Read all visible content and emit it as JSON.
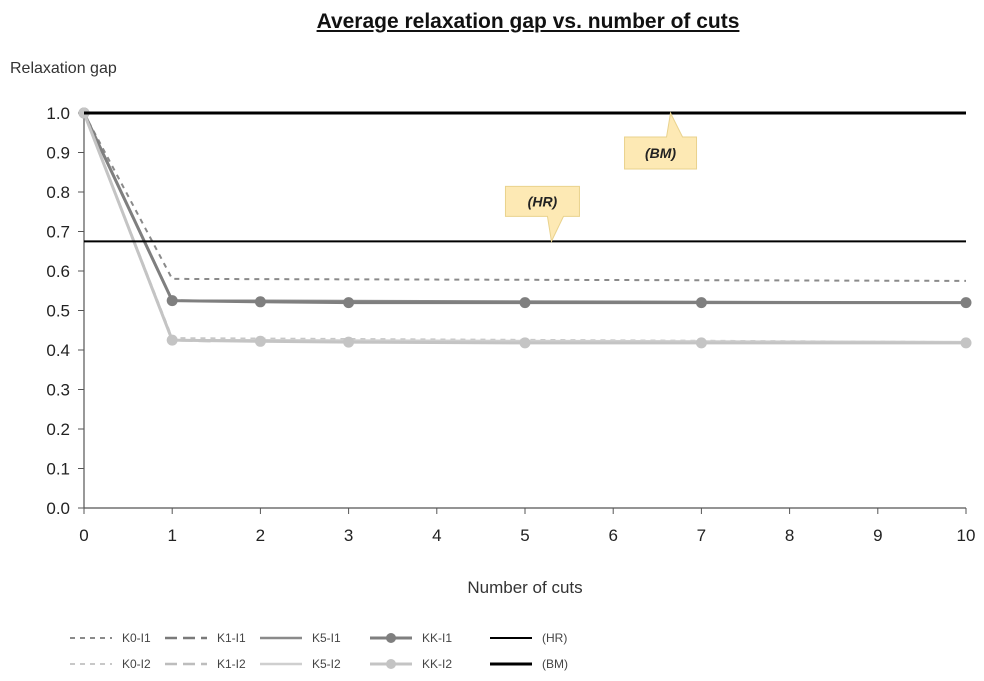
{
  "chart_data": {
    "type": "line",
    "title": "Average relaxation gap vs. number of cuts",
    "xlabel": "Number of cuts",
    "ylabel": "Relaxation gap",
    "xlim": [
      0,
      10
    ],
    "ylim": [
      0,
      1.0
    ],
    "x_ticks": [
      "0",
      "1",
      "2",
      "3",
      "4",
      "5",
      "6",
      "7",
      "8",
      "9",
      "10"
    ],
    "y_ticks": [
      "0.0",
      "0.1",
      "0.2",
      "0.3",
      "0.4",
      "0.5",
      "0.6",
      "0.7",
      "0.8",
      "0.9",
      "1.0"
    ],
    "grid": false,
    "legend_position": "bottom-left",
    "series": [
      {
        "name": "K0-I1",
        "style": "dashed",
        "color": "#8a8a8a",
        "x": [
          0,
          1,
          10
        ],
        "y": [
          1.0,
          0.58,
          0.575
        ]
      },
      {
        "name": "K1-I1",
        "style": "dashed-long",
        "color": "#7a7a7a",
        "x": [
          0,
          1,
          4
        ],
        "y": [
          1.0,
          0.525,
          0.52
        ]
      },
      {
        "name": "K5-I1",
        "style": "solid",
        "color": "#8a8a8a",
        "x": [
          0,
          1,
          10
        ],
        "y": [
          1.0,
          0.525,
          0.52
        ]
      },
      {
        "name": "KK-I1",
        "style": "solid-marker",
        "color": "#7f7f7f",
        "x": [
          0,
          1,
          2,
          3,
          5,
          7,
          10
        ],
        "y": [
          1.0,
          0.525,
          0.522,
          0.52,
          0.52,
          0.52,
          0.52
        ]
      },
      {
        "name": "K0-I2",
        "style": "dashed",
        "color": "#c8c8c8",
        "x": [
          0,
          1,
          10
        ],
        "y": [
          1.0,
          0.43,
          0.42
        ]
      },
      {
        "name": "K1-I2",
        "style": "dashed-long",
        "color": "#bdbdbd",
        "x": [
          0,
          1,
          1.5
        ],
        "y": [
          1.0,
          0.425,
          0.422
        ]
      },
      {
        "name": "K5-I2",
        "style": "solid",
        "color": "#cfcfcf",
        "x": [
          0,
          1,
          10
        ],
        "y": [
          1.0,
          0.425,
          0.42
        ]
      },
      {
        "name": "KK-I2",
        "style": "solid-marker",
        "color": "#c4c4c4",
        "x": [
          0,
          1,
          2,
          3,
          5,
          7,
          10
        ],
        "y": [
          1.0,
          0.425,
          0.422,
          0.42,
          0.418,
          0.418,
          0.418
        ]
      },
      {
        "name": "(HR)",
        "style": "solid-thin",
        "color": "#000000",
        "x": [
          0,
          10
        ],
        "y": [
          0.675,
          0.675
        ]
      },
      {
        "name": "(BM)",
        "style": "solid-thick",
        "color": "#000000",
        "x": [
          0,
          10
        ],
        "y": [
          1.0,
          1.0
        ]
      }
    ],
    "legend_rows": [
      [
        "K0-I1",
        "K1-I1",
        "K5-I1",
        "KK-I1",
        "(HR)"
      ],
      [
        "K0-I2",
        "K1-I2",
        "K5-I2",
        "KK-I2",
        "(BM)"
      ]
    ],
    "annotations": [
      {
        "text": "(BM)",
        "points_to": {
          "x": 6.65,
          "y": 1.0
        },
        "fill": "#fde9b4",
        "border": "#e9d28d"
      },
      {
        "text": "(HR)",
        "points_to": {
          "x": 5.3,
          "y": 0.675
        },
        "fill": "#fde9b4",
        "border": "#e9d28d"
      }
    ]
  }
}
